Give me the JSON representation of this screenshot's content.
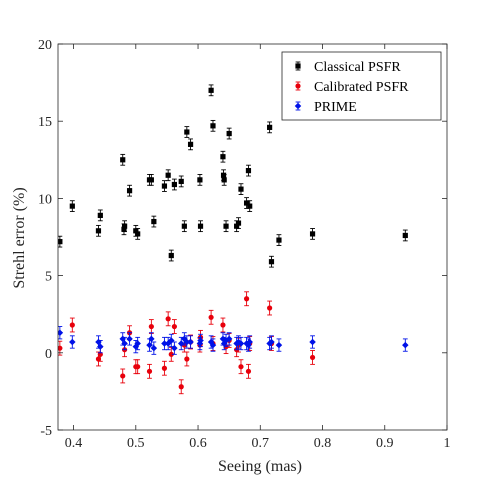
{
  "chart_data": {
    "type": "scatter",
    "title": "",
    "xlabel": "Seeing (mas)",
    "ylabel": "Strehl error (%)",
    "xlim": [
      0.375,
      1.0
    ],
    "ylim": [
      -5,
      20
    ],
    "xticks": [
      "0.4",
      "0.5",
      "0.6",
      "0.7",
      "0.8",
      "0.9",
      "1"
    ],
    "yticks": [
      "-5",
      "0",
      "5",
      "10",
      "15",
      "20"
    ],
    "grid": false,
    "legend_position": "top-right",
    "series": [
      {
        "name": "Classical PSFR",
        "color": "#000000",
        "marker": "square",
        "error": 0.35,
        "x": [
          0.378,
          0.398,
          0.44,
          0.443,
          0.479,
          0.481,
          0.482,
          0.49,
          0.5,
          0.503,
          0.522,
          0.525,
          0.529,
          0.546,
          0.552,
          0.557,
          0.562,
          0.573,
          0.578,
          0.582,
          0.588,
          0.603,
          0.604,
          0.621,
          0.624,
          0.64,
          0.641,
          0.642,
          0.645,
          0.65,
          0.662,
          0.665,
          0.669,
          0.678,
          0.681,
          0.683,
          0.715,
          0.718,
          0.73,
          0.784,
          0.933
        ],
        "y": [
          7.2,
          9.5,
          7.9,
          8.9,
          12.5,
          8.0,
          8.2,
          10.5,
          7.9,
          7.7,
          11.2,
          11.2,
          8.5,
          10.8,
          11.5,
          6.3,
          10.9,
          11.1,
          8.2,
          14.3,
          13.5,
          11.2,
          8.2,
          17.0,
          14.7,
          12.7,
          11.5,
          11.2,
          8.2,
          14.2,
          8.2,
          8.4,
          10.6,
          9.7,
          11.8,
          9.5,
          14.6,
          5.9,
          7.3,
          7.7,
          7.6
        ]
      },
      {
        "name": "Calibrated PSFR",
        "color": "#e8000b",
        "marker": "circle",
        "error": 0.45,
        "x": [
          0.378,
          0.398,
          0.44,
          0.443,
          0.479,
          0.482,
          0.49,
          0.5,
          0.503,
          0.522,
          0.525,
          0.546,
          0.552,
          0.557,
          0.562,
          0.573,
          0.578,
          0.582,
          0.588,
          0.603,
          0.604,
          0.621,
          0.624,
          0.64,
          0.645,
          0.65,
          0.662,
          0.665,
          0.669,
          0.678,
          0.681,
          0.683,
          0.715,
          0.718,
          0.784
        ],
        "y": [
          0.3,
          1.8,
          -0.4,
          -0.1,
          -1.5,
          0.2,
          1.3,
          -0.9,
          -0.9,
          -1.2,
          1.7,
          -1.0,
          2.2,
          -0.1,
          1.7,
          -2.2,
          0.5,
          -0.4,
          0.7,
          0.5,
          1.0,
          2.3,
          0.6,
          1.8,
          0.4,
          0.8,
          0.2,
          0.5,
          -0.9,
          3.5,
          -1.2,
          0.6,
          2.9,
          0.6,
          -0.3
        ]
      },
      {
        "name": "PRIME",
        "color": "#0012e8",
        "marker": "diamond",
        "error": 0.4,
        "x": [
          0.378,
          0.398,
          0.44,
          0.443,
          0.479,
          0.482,
          0.49,
          0.5,
          0.503,
          0.522,
          0.525,
          0.529,
          0.546,
          0.552,
          0.557,
          0.562,
          0.573,
          0.578,
          0.582,
          0.588,
          0.603,
          0.604,
          0.621,
          0.624,
          0.64,
          0.642,
          0.645,
          0.65,
          0.662,
          0.665,
          0.669,
          0.678,
          0.681,
          0.683,
          0.715,
          0.718,
          0.73,
          0.784,
          0.933
        ],
        "y": [
          1.3,
          0.7,
          0.7,
          0.4,
          0.9,
          0.6,
          0.9,
          0.4,
          0.6,
          0.5,
          0.9,
          0.3,
          0.6,
          0.6,
          0.8,
          0.3,
          0.6,
          0.9,
          0.7,
          0.7,
          0.6,
          0.8,
          0.7,
          0.5,
          0.9,
          0.6,
          0.8,
          0.9,
          0.6,
          0.7,
          0.6,
          0.6,
          0.5,
          0.7,
          0.6,
          0.7,
          0.5,
          0.7,
          0.5
        ]
      }
    ]
  }
}
